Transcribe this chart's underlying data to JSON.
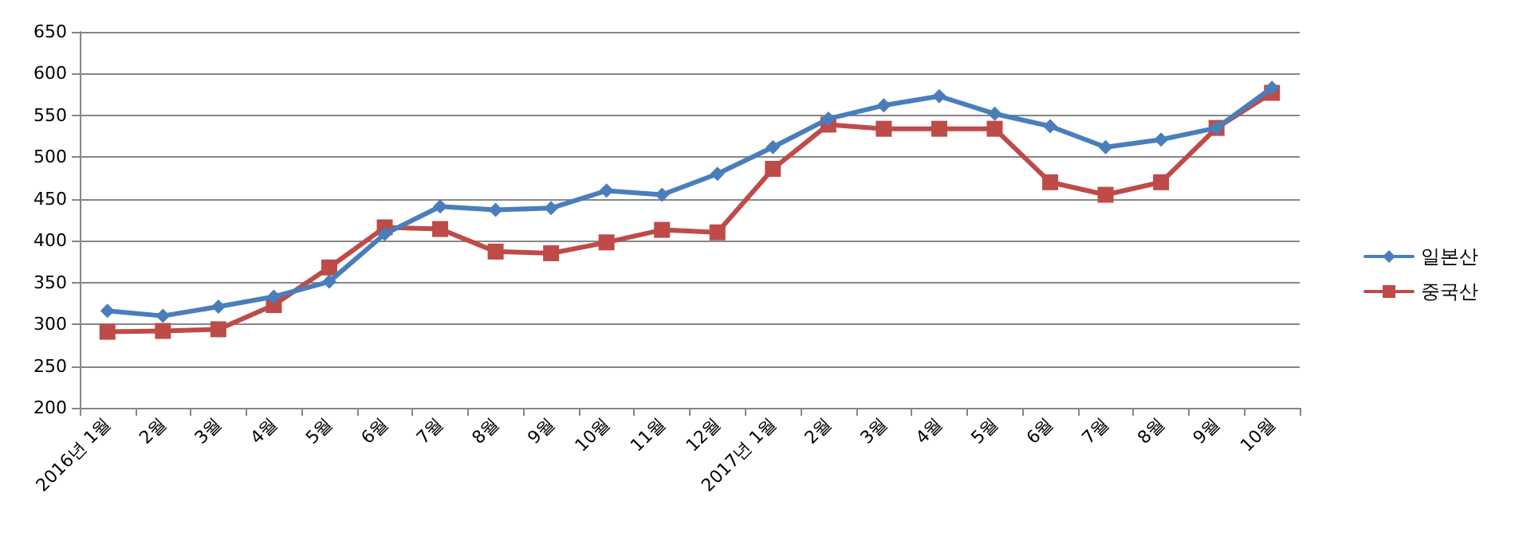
{
  "chart_data": {
    "type": "line",
    "categories": [
      "2016년 1월",
      "2월",
      "3월",
      "4월",
      "5월",
      "6월",
      "7월",
      "8월",
      "9월",
      "10월",
      "11월",
      "12월",
      "2017년 1월",
      "2월",
      "3월",
      "4월",
      "5월",
      "6월",
      "7월",
      "8월",
      "9월",
      "10월"
    ],
    "series": [
      {
        "name": "일본산",
        "color": "#4a7ebb",
        "marker": "diamond",
        "values": [
          316,
          310,
          321,
          333,
          351,
          408,
          441,
          437,
          439,
          460,
          455,
          480,
          512,
          546,
          562,
          573,
          552,
          537,
          512,
          521,
          535,
          583
        ]
      },
      {
        "name": "중국산",
        "color": "#be4b48",
        "marker": "square",
        "values": [
          291,
          292,
          294,
          323,
          368,
          416,
          414,
          387,
          385,
          398,
          413,
          410,
          486,
          539,
          534,
          534,
          534,
          470,
          455,
          470,
          535,
          577
        ]
      }
    ],
    "ylim": [
      200,
      650
    ],
    "yticks": [
      200,
      250,
      300,
      350,
      400,
      450,
      500,
      550,
      600,
      650
    ],
    "grid": "y",
    "legend": "right",
    "line_style": "solid"
  }
}
